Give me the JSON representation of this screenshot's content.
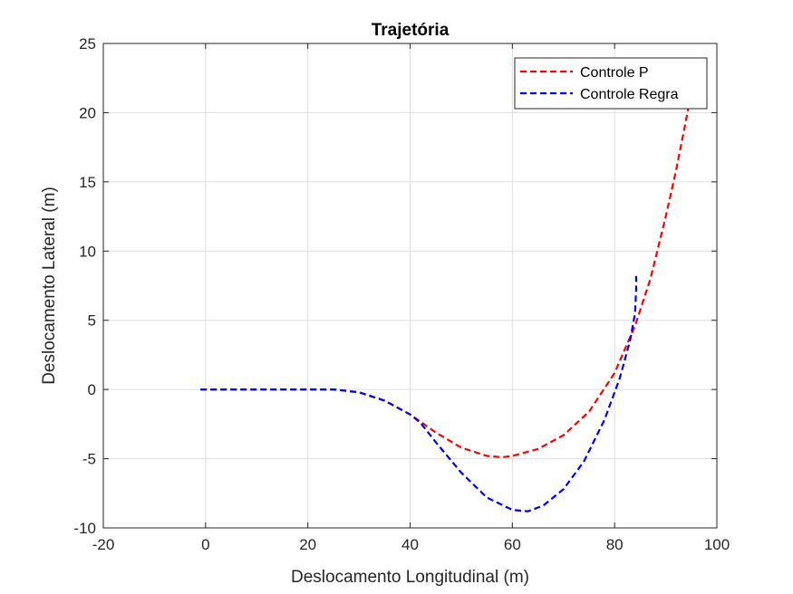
{
  "chart_data": {
    "type": "line",
    "title": "Trajetória",
    "xlabel": "Deslocamento Longitudinal (m)",
    "ylabel": "Deslocamento Lateral (m)",
    "xlim": [
      -20,
      100
    ],
    "ylim": [
      -10,
      25
    ],
    "xticks": [
      -20,
      0,
      20,
      40,
      60,
      80,
      100
    ],
    "yticks": [
      -10,
      -5,
      0,
      5,
      10,
      15,
      20,
      25
    ],
    "grid": true,
    "legend_position": "top-right",
    "series": [
      {
        "name": "Controle P",
        "color": "#ff0000",
        "style": "dashed",
        "x": [
          -1,
          10,
          20,
          25,
          30,
          35,
          40,
          45,
          50,
          55,
          58,
          60,
          65,
          70,
          75,
          80,
          84,
          87,
          90,
          92,
          94,
          95
        ],
        "y": [
          0,
          0,
          0,
          0,
          -0.2,
          -0.8,
          -1.8,
          -3.1,
          -4.2,
          -4.8,
          -4.9,
          -4.8,
          -4.3,
          -3.3,
          -1.6,
          1.2,
          4.6,
          8.0,
          12.5,
          15.8,
          19.5,
          21.5
        ]
      },
      {
        "name": "Controle Regra",
        "color": "#0000ff",
        "style": "dashed",
        "x": [
          -1,
          10,
          20,
          25,
          30,
          35,
          40,
          42,
          45,
          50,
          55,
          60,
          63,
          66,
          70,
          74,
          78,
          81,
          83,
          84,
          84.2,
          84.2
        ],
        "y": [
          0,
          0,
          0,
          0,
          -0.2,
          -0.8,
          -1.8,
          -2.4,
          -3.8,
          -6.0,
          -7.8,
          -8.7,
          -8.8,
          -8.4,
          -7.2,
          -5.2,
          -2.2,
          0.8,
          3.5,
          5.5,
          7.2,
          8.2
        ]
      }
    ]
  }
}
